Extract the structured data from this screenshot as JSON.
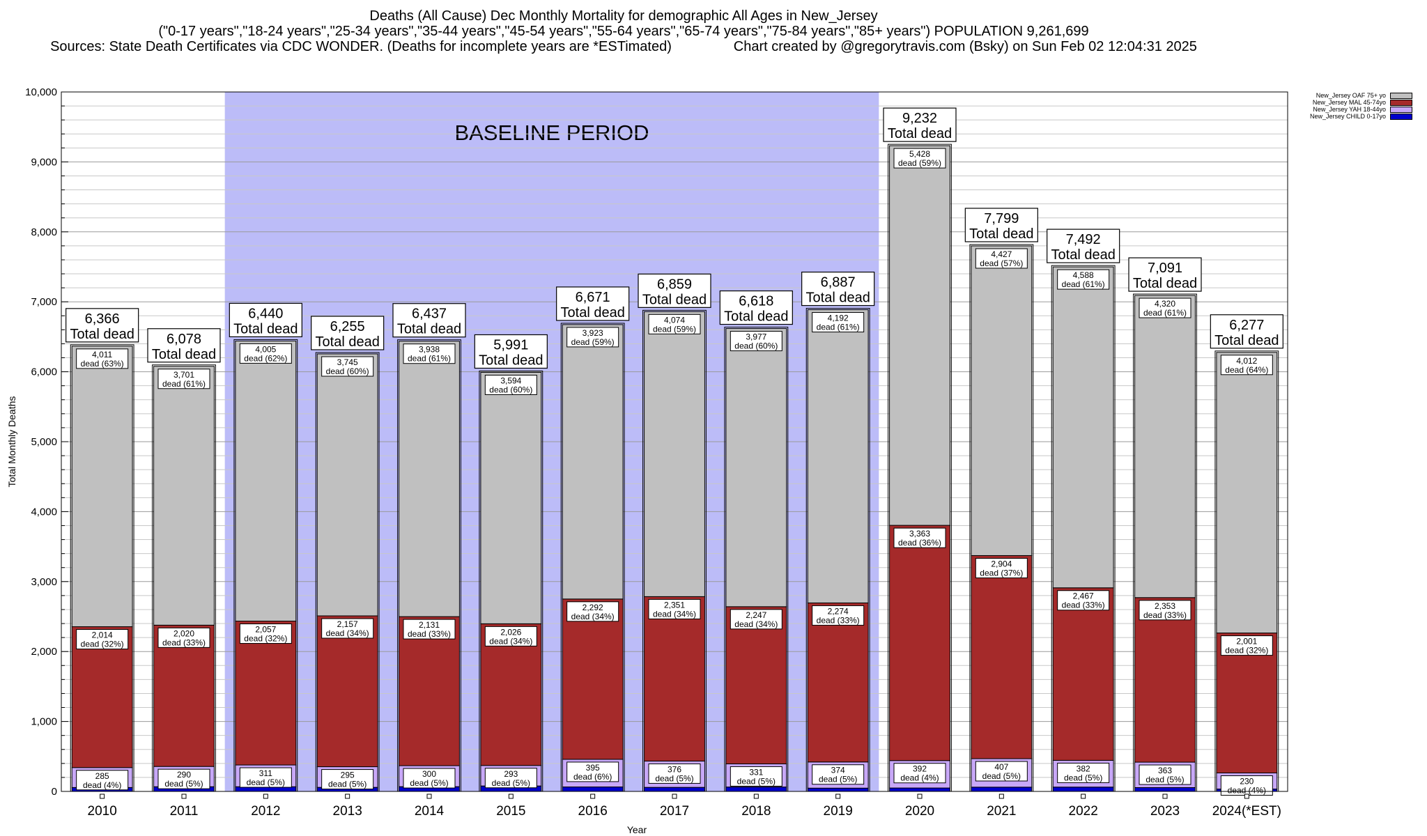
{
  "header": {
    "title_line1": "Deaths (All Cause) Dec Monthly Mortality for demographic All Ages in New_Jersey",
    "title_line2": "(\"0-17 years\",\"18-24 years\",\"25-34 years\",\"35-44 years\",\"45-54 years\",\"55-64 years\",\"65-74 years\",\"75-84 years\",\"85+ years\") POPULATION 9,261,699",
    "title_line3_left": "Sources: State Death Certificates via CDC WONDER. (Deaths for incomplete years are *ESTimated)",
    "title_line3_right": "Chart created by @gregorytravis.com (Bsky) on Sun Feb 02 12:04:31 2025"
  },
  "chart_data": {
    "type": "bar",
    "stacked": true,
    "xlabel": "Year",
    "ylabel": "Total Monthly Deaths",
    "ylim": [
      0,
      10000
    ],
    "y_ticks": [
      "0",
      "1,000",
      "2,000",
      "3,000",
      "4,000",
      "5,000",
      "6,000",
      "7,000",
      "8,000",
      "9,000",
      "10,000"
    ],
    "grid": true,
    "categories": [
      "2010",
      "2011",
      "2012",
      "2013",
      "2014",
      "2015",
      "2016",
      "2017",
      "2018",
      "2019",
      "2020",
      "2021",
      "2022",
      "2023",
      "2024(*EST)"
    ],
    "series": [
      {
        "name": "New_Jersey CHILD 0-17yo",
        "color": "#0000cc",
        "values": [
          56,
          67,
          67,
          58,
          68,
          78,
          64,
          58,
          63,
          47,
          49,
          61,
          62,
          55,
          34
        ]
      },
      {
        "name": "New_Jersey YAH 18-44yo",
        "color": "#c8a8f8",
        "values": [
          285,
          290,
          311,
          295,
          300,
          293,
          395,
          376,
          331,
          374,
          392,
          407,
          382,
          363,
          230
        ]
      },
      {
        "name": "New_Jersey MAL 45-74yo",
        "color": "#a52a2a",
        "values": [
          2014,
          2020,
          2057,
          2157,
          2131,
          2026,
          2292,
          2351,
          2247,
          2274,
          3363,
          2904,
          2467,
          2353,
          2001
        ]
      },
      {
        "name": "New_Jersey OAF 75+ yo",
        "color": "#c0c0c0",
        "values": [
          4011,
          3701,
          4005,
          3745,
          3938,
          3594,
          3923,
          4074,
          3977,
          4192,
          5428,
          4427,
          4588,
          4320,
          4012
        ]
      }
    ],
    "totals": [
      "6,366",
      "6,078",
      "6,440",
      "6,255",
      "6,437",
      "5,991",
      "6,671",
      "6,859",
      "6,618",
      "6,887",
      "9,232",
      "7,799",
      "7,492",
      "7,091",
      "6,277"
    ],
    "total_label": "Total dead",
    "segment_labels": {
      "oaf": [
        "4,011",
        "3,701",
        "4,005",
        "3,745",
        "3,938",
        "3,594",
        "3,923",
        "4,074",
        "3,977",
        "4,192",
        "5,428",
        "4,427",
        "4,588",
        "4,320",
        "4,012"
      ],
      "oaf_pct": [
        "dead (63%)",
        "dead (61%)",
        "dead (62%)",
        "dead (60%)",
        "dead (61%)",
        "dead (60%)",
        "dead (59%)",
        "dead (59%)",
        "dead (60%)",
        "dead (61%)",
        "dead (59%)",
        "dead (57%)",
        "dead (61%)",
        "dead (61%)",
        "dead (64%)"
      ],
      "mal": [
        "2,014",
        "2,020",
        "2,057",
        "2,157",
        "2,131",
        "2,026",
        "2,292",
        "2,351",
        "2,247",
        "2,274",
        "3,363",
        "2,904",
        "2,467",
        "2,353",
        "2,001"
      ],
      "mal_pct": [
        "dead (32%)",
        "dead (33%)",
        "dead (32%)",
        "dead (34%)",
        "dead (33%)",
        "dead (34%)",
        "dead (34%)",
        "dead (34%)",
        "dead (34%)",
        "dead (33%)",
        "dead (36%)",
        "dead (37%)",
        "dead (33%)",
        "dead (33%)",
        "dead (32%)"
      ],
      "yah": [
        "285",
        "290",
        "311",
        "295",
        "300",
        "293",
        "395",
        "376",
        "331",
        "374",
        "392",
        "407",
        "382",
        "363",
        "230"
      ],
      "yah_pct": [
        "dead (4%)",
        "dead (5%)",
        "dead (5%)",
        "dead (5%)",
        "dead (5%)",
        "dead (5%)",
        "dead (6%)",
        "dead (5%)",
        "dead (5%)",
        "dead (5%)",
        "dead (4%)",
        "dead (5%)",
        "dead (5%)",
        "dead (5%)",
        "dead (4%)"
      ]
    },
    "baseline": {
      "label": "BASELINE PERIOD",
      "from": "2012",
      "to": "2019",
      "color": "#bcbcf8"
    },
    "legend_position": "top-right"
  }
}
